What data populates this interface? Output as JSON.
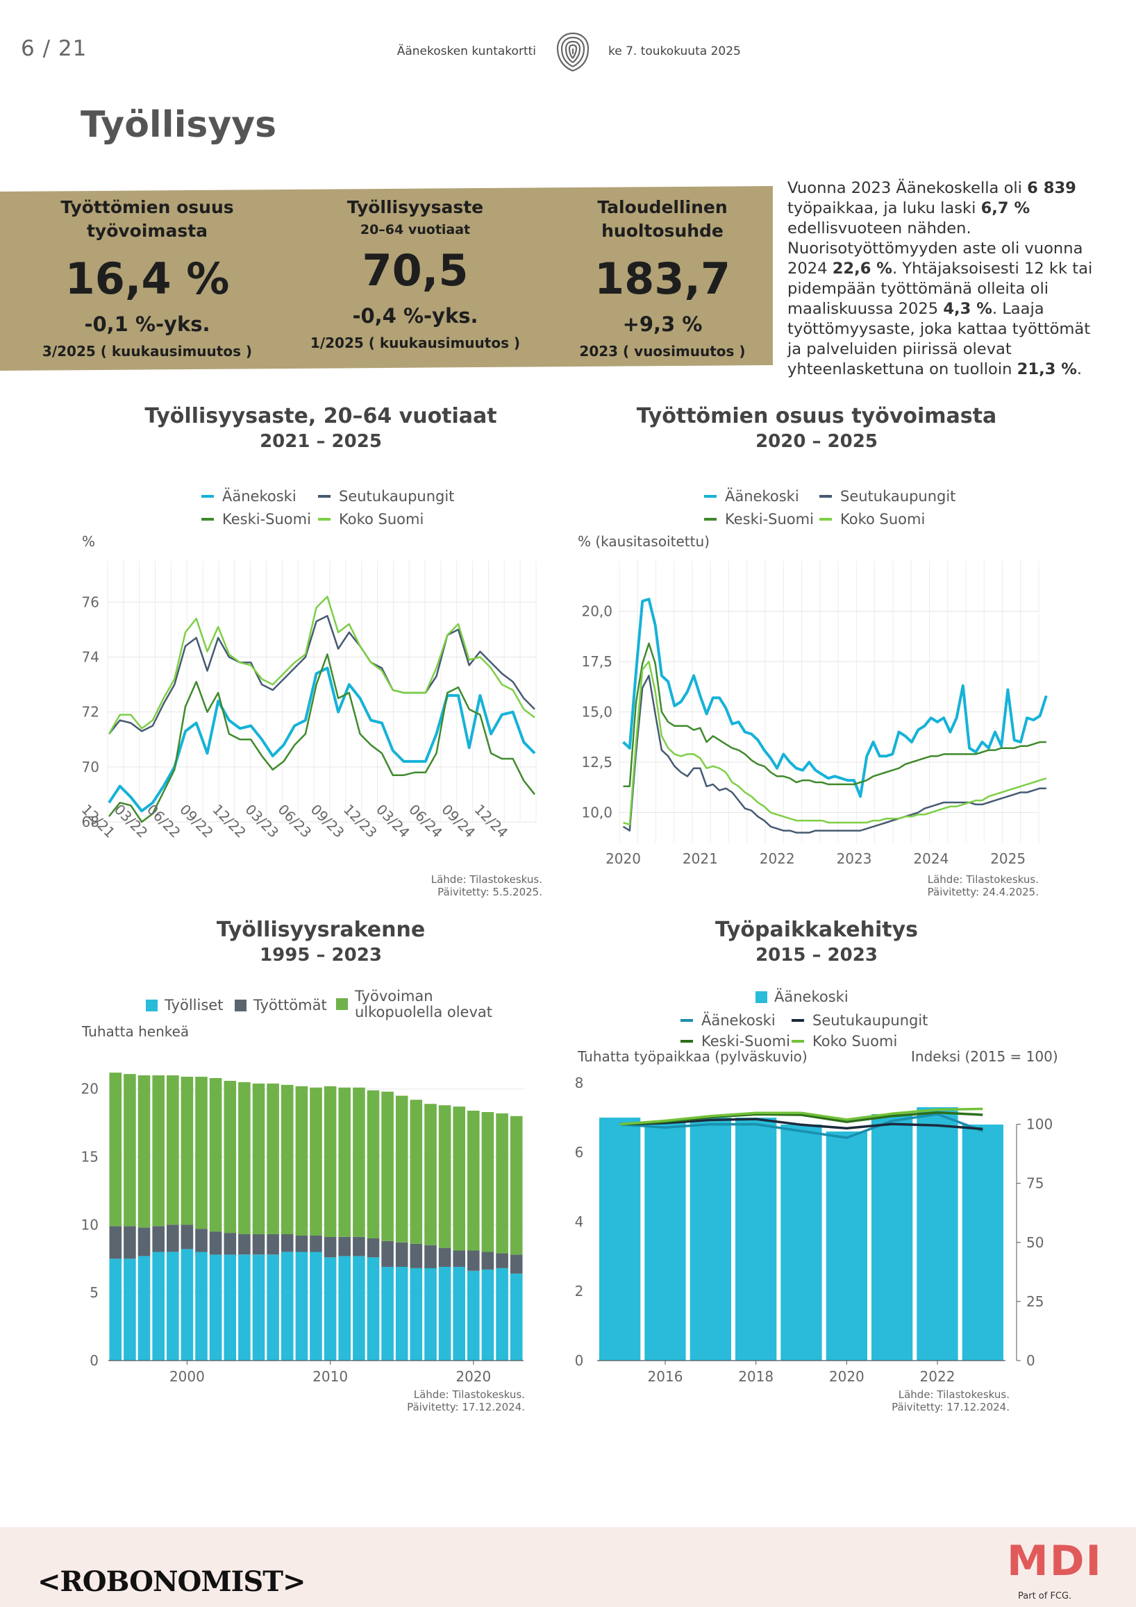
{
  "header": {
    "page": "6 / 21",
    "doc": "Äänekosken kuntakortti",
    "date": "ke 7. toukokuuta 2025"
  },
  "title": "Työllisyys",
  "kpis": [
    {
      "label": "Työttömien osuus työvoimasta",
      "sub": "",
      "value": "16,4 %",
      "change": "-0,1 %-yks.",
      "period": "3/2025 ( kuukausimuutos )"
    },
    {
      "label": "Työllisyysaste",
      "sub": "20–64 vuotiaat",
      "value": "70,5",
      "change": "-0,4 %-yks.",
      "period": "1/2025 ( kuukausimuutos )"
    },
    {
      "label": "Taloudellinen huoltosuhde",
      "sub": "",
      "value": "183,7",
      "change": "+9,3 %",
      "period": "2023 ( vuosimuutos )"
    }
  ],
  "summary": {
    "p1": "Vuonna 2023 Äänekoskella oli ",
    "b1": "6 839",
    "p2": " työpaikkaa, ja luku laski ",
    "b2": "6,7 %",
    "p3": " edellisvuoteen nähden. Nuorisotyöttömyyden aste oli vuonna 2024 ",
    "b3": "22,6 %",
    "p4": ". Yhtäjaksoisesti 12 kk tai pidempään työttömänä olleita oli maaliskuussa 2025 ",
    "b4": "4,3 %",
    "p5": ". Laaja työttömyysaste, joka kattaa työttömät ja palveluiden piirissä olevat yhteenlaskettuna on tuolloin ",
    "b5": "21,3 %",
    "p6": "."
  },
  "colors": {
    "band": "#b2a276",
    "aanekoski": "#16b2d8",
    "seutukaupungit": "#465a72",
    "keski_suomi": "#3f8a2c",
    "koko_suomi": "#7dcf45",
    "bar_blue": "#29bbd9",
    "bar_grey": "#5b6570",
    "bar_green": "#6fb24a",
    "dark_navy": "#1c2a3c"
  },
  "chart_data": [
    {
      "id": "tyollisyysaste",
      "type": "line",
      "title": "Työllisyysaste, 20–64 vuotiaat",
      "subtitle": "2021 – 2025",
      "ylabel": "%",
      "ylim": [
        68,
        77.5
      ],
      "yticks": [
        "68",
        "70",
        "72",
        "74",
        "76"
      ],
      "xticks": [
        "12/21",
        "03/22",
        "06/22",
        "09/22",
        "12/22",
        "03/23",
        "06/23",
        "09/23",
        "12/23",
        "03/24",
        "06/24",
        "09/24",
        "12/24"
      ],
      "source": "Lähde: Tilastokeskus.",
      "updated": "Päivitetty: 5.5.2025.",
      "series": [
        {
          "name": "Äänekoski",
          "color": "#16b2d8",
          "width": 4,
          "values": [
            68.7,
            69.3,
            68.9,
            68.4,
            68.7,
            69.3,
            70.0,
            71.3,
            71.6,
            70.5,
            72.4,
            71.7,
            71.4,
            71.5,
            71.0,
            70.4,
            70.8,
            71.5,
            71.7,
            73.4,
            73.6,
            72.0,
            73.0,
            72.5,
            71.7,
            71.6,
            70.6,
            70.2,
            70.2,
            70.2,
            71.2,
            72.6,
            72.6,
            70.7,
            72.6,
            71.2,
            71.9,
            72.0,
            70.9,
            70.5
          ]
        },
        {
          "name": "Seutukaupungit",
          "color": "#465a72",
          "width": 2.5,
          "values": [
            71.2,
            71.7,
            71.6,
            71.3,
            71.5,
            72.3,
            73.0,
            74.4,
            74.7,
            73.5,
            74.7,
            74.0,
            73.8,
            73.8,
            73.0,
            72.8,
            73.2,
            73.6,
            74.0,
            75.3,
            75.5,
            74.3,
            74.9,
            74.4,
            73.8,
            73.6,
            72.8,
            72.7,
            72.7,
            72.7,
            73.3,
            74.8,
            75.0,
            73.7,
            74.2,
            73.8,
            73.4,
            73.1,
            72.5,
            72.1
          ]
        },
        {
          "name": "Keski-Suomi",
          "color": "#3f8a2c",
          "width": 2.5,
          "values": [
            68.2,
            68.7,
            68.6,
            68.0,
            68.3,
            69.1,
            69.9,
            72.2,
            73.1,
            72.0,
            72.7,
            71.2,
            71.0,
            71.0,
            70.4,
            69.9,
            70.2,
            70.8,
            71.2,
            73.0,
            74.1,
            72.5,
            72.7,
            71.2,
            70.8,
            70.5,
            69.7,
            69.7,
            69.8,
            69.8,
            70.5,
            72.7,
            72.9,
            72.1,
            71.9,
            70.5,
            70.3,
            70.3,
            69.5,
            69.0
          ]
        },
        {
          "name": "Koko Suomi",
          "color": "#7dcf45",
          "width": 2.5,
          "values": [
            71.2,
            71.9,
            71.9,
            71.4,
            71.7,
            72.5,
            73.2,
            74.9,
            75.4,
            74.2,
            75.1,
            74.1,
            73.8,
            73.7,
            73.2,
            73.0,
            73.4,
            73.8,
            74.1,
            75.8,
            76.2,
            74.9,
            75.2,
            74.4,
            73.8,
            73.5,
            72.8,
            72.7,
            72.7,
            72.7,
            73.6,
            74.8,
            75.2,
            73.9,
            74.0,
            73.6,
            73.0,
            72.8,
            72.1,
            71.8
          ]
        }
      ]
    },
    {
      "id": "tyottomien_osuus",
      "type": "line",
      "title": "Työttömien osuus työvoimasta",
      "subtitle": "2020 – 2025",
      "ylabel": "% (kausitasoitettu)",
      "ylim": [
        8.5,
        22.5
      ],
      "yticks": [
        "10,0",
        "12,5",
        "15,0",
        "17,5",
        "20,0"
      ],
      "xticks": [
        "2020",
        "2021",
        "2022",
        "2023",
        "2024",
        "2025"
      ],
      "x_start": 2020.0,
      "x_step": 0.0833,
      "source": "Lähde: Tilastokeskus.",
      "updated": "Päivitetty: 24.4.2025.",
      "series": [
        {
          "name": "Äänekoski",
          "color": "#16b2d8",
          "width": 4,
          "values": [
            13.5,
            13.2,
            17.0,
            20.5,
            20.6,
            19.3,
            16.8,
            16.5,
            15.3,
            15.5,
            16.0,
            16.8,
            15.8,
            14.9,
            15.7,
            15.7,
            15.2,
            14.4,
            14.5,
            14.0,
            13.9,
            13.6,
            13.1,
            12.7,
            12.2,
            12.9,
            12.5,
            12.2,
            12.1,
            12.5,
            12.1,
            11.9,
            11.7,
            11.8,
            11.7,
            11.6,
            11.6,
            10.8,
            12.8,
            13.5,
            12.8,
            12.8,
            12.9,
            14.0,
            13.8,
            13.5,
            14.1,
            14.3,
            14.7,
            14.5,
            14.7,
            14.0,
            14.7,
            16.3,
            13.2,
            13.0,
            13.5,
            13.2,
            14.0,
            13.3,
            16.1,
            13.6,
            13.5,
            14.7,
            14.6,
            14.8,
            15.8
          ]
        },
        {
          "name": "Seutukaupungit",
          "color": "#465a72",
          "width": 2.5,
          "values": [
            9.3,
            9.1,
            13.0,
            16.2,
            16.8,
            14.9,
            13.1,
            12.8,
            12.3,
            12.0,
            11.8,
            12.2,
            12.2,
            11.3,
            11.4,
            11.1,
            11.2,
            11.0,
            10.6,
            10.2,
            10.1,
            9.8,
            9.6,
            9.3,
            9.2,
            9.1,
            9.1,
            9.0,
            9.0,
            9.0,
            9.1,
            9.1,
            9.1,
            9.1,
            9.1,
            9.1,
            9.1,
            9.1,
            9.2,
            9.3,
            9.4,
            9.5,
            9.6,
            9.7,
            9.8,
            9.9,
            10.0,
            10.2,
            10.3,
            10.4,
            10.5,
            10.5,
            10.5,
            10.5,
            10.5,
            10.4,
            10.4,
            10.5,
            10.6,
            10.7,
            10.8,
            10.9,
            11.0,
            11.0,
            11.1,
            11.2,
            11.2
          ]
        },
        {
          "name": "Keski-Suomi",
          "color": "#3f8a2c",
          "width": 2.5,
          "values": [
            11.3,
            11.3,
            15.5,
            17.4,
            18.4,
            17.4,
            15.0,
            14.5,
            14.3,
            14.3,
            14.3,
            14.1,
            14.2,
            13.5,
            13.8,
            13.6,
            13.4,
            13.2,
            13.1,
            12.9,
            12.6,
            12.4,
            12.3,
            12.0,
            11.8,
            11.8,
            11.7,
            11.5,
            11.6,
            11.6,
            11.5,
            11.5,
            11.4,
            11.4,
            11.4,
            11.4,
            11.4,
            11.5,
            11.6,
            11.8,
            11.9,
            12.0,
            12.1,
            12.2,
            12.4,
            12.5,
            12.6,
            12.7,
            12.8,
            12.8,
            12.9,
            12.9,
            12.9,
            12.9,
            12.9,
            12.9,
            13.0,
            13.1,
            13.1,
            13.2,
            13.2,
            13.2,
            13.3,
            13.3,
            13.4,
            13.5,
            13.5
          ]
        },
        {
          "name": "Koko Suomi",
          "color": "#7dcf45",
          "width": 2.5,
          "values": [
            9.5,
            9.4,
            13.5,
            17.1,
            17.5,
            16.0,
            13.8,
            13.2,
            12.9,
            12.8,
            12.9,
            12.9,
            12.7,
            12.2,
            12.3,
            12.2,
            12.0,
            11.5,
            11.3,
            11.0,
            10.8,
            10.5,
            10.3,
            10.0,
            9.9,
            9.8,
            9.7,
            9.6,
            9.6,
            9.6,
            9.6,
            9.6,
            9.5,
            9.5,
            9.5,
            9.5,
            9.5,
            9.5,
            9.5,
            9.6,
            9.6,
            9.7,
            9.7,
            9.7,
            9.8,
            9.8,
            9.9,
            9.9,
            10.0,
            10.1,
            10.2,
            10.3,
            10.3,
            10.4,
            10.5,
            10.6,
            10.6,
            10.8,
            10.9,
            11.0,
            11.1,
            11.2,
            11.3,
            11.4,
            11.5,
            11.6,
            11.7
          ]
        }
      ]
    },
    {
      "id": "tyollisyysrakenne",
      "type": "bar",
      "title": "Työllisyysrakenne",
      "subtitle": "1995 – 2023",
      "ylabel": "Tuhatta henkeä",
      "ylim": [
        0,
        23
      ],
      "yticks": [
        "0",
        "5",
        "10",
        "15",
        "20"
      ],
      "xticks": [
        "2000",
        "2010",
        "2020"
      ],
      "categories": [
        1995,
        1996,
        1997,
        1998,
        1999,
        2000,
        2001,
        2002,
        2003,
        2004,
        2005,
        2006,
        2007,
        2008,
        2009,
        2010,
        2011,
        2012,
        2013,
        2014,
        2015,
        2016,
        2017,
        2018,
        2019,
        2020,
        2021,
        2022,
        2023
      ],
      "source": "Lähde: Tilastokeskus.",
      "updated": "Päivitetty: 17.12.2024.",
      "series": [
        {
          "name": "Työlliset",
          "color": "#29bbd9",
          "values": [
            7.5,
            7.5,
            7.7,
            8.0,
            8.0,
            8.2,
            8.0,
            7.8,
            7.8,
            7.8,
            7.8,
            7.8,
            8.0,
            8.0,
            8.0,
            7.6,
            7.7,
            7.7,
            7.6,
            6.9,
            6.9,
            6.8,
            6.8,
            6.9,
            6.9,
            6.6,
            6.7,
            6.8,
            6.4
          ]
        },
        {
          "name": "Työttömät",
          "color": "#5b6570",
          "values": [
            2.4,
            2.4,
            2.1,
            1.9,
            2.0,
            1.8,
            1.7,
            1.7,
            1.6,
            1.5,
            1.5,
            1.5,
            1.3,
            1.2,
            1.2,
            1.5,
            1.4,
            1.4,
            1.4,
            1.9,
            1.8,
            1.8,
            1.7,
            1.4,
            1.2,
            1.5,
            1.3,
            1.1,
            1.4
          ]
        },
        {
          "name": "Työvoiman ulkopuolella olevat",
          "color": "#6fb24a",
          "values": [
            11.3,
            11.2,
            11.2,
            11.1,
            11.0,
            10.9,
            11.2,
            11.3,
            11.2,
            11.2,
            11.1,
            11.1,
            11.0,
            11.0,
            10.9,
            11.1,
            11.0,
            11.0,
            10.9,
            11.0,
            10.8,
            10.6,
            10.4,
            10.5,
            10.6,
            10.3,
            10.3,
            10.3,
            10.2
          ]
        }
      ]
    },
    {
      "id": "tyopaikkakehitys",
      "type": "bar",
      "title": "Työpaikkakehitys",
      "subtitle": "2015 – 2023",
      "ylabel": "Tuhatta työpaikkaa (pylväskuvio)",
      "ylabel_right": "Indeksi (2015 = 100)",
      "ylim": [
        0,
        8
      ],
      "ylim_right": [
        0,
        117.5
      ],
      "yticks": [
        "0",
        "2",
        "4",
        "6",
        "8"
      ],
      "yticks_right": [
        "0",
        "25",
        "50",
        "75",
        "100"
      ],
      "xticks": [
        "2016",
        "2018",
        "2020",
        "2022"
      ],
      "categories": [
        2015,
        2016,
        2017,
        2018,
        2019,
        2020,
        2021,
        2022,
        2023
      ],
      "bar_legend": "Äänekoski",
      "source": "Lähde: Tilastokeskus.",
      "updated": "Päivitetty: 17.12.2024.",
      "bars": [
        7.0,
        6.9,
        7.0,
        7.0,
        6.8,
        6.6,
        7.1,
        7.3,
        6.8
      ],
      "series": [
        {
          "name": "Äänekoski",
          "color": "#1a8fad",
          "values": [
            100,
            98.6,
            100,
            100,
            97.1,
            94.3,
            101.4,
            104.3,
            97.1
          ]
        },
        {
          "name": "Seutukaupungit",
          "color": "#1c2a3c",
          "values": [
            100,
            100.5,
            101.8,
            102.2,
            99.8,
            98.3,
            100.1,
            99.5,
            98.0
          ]
        },
        {
          "name": "Keski-Suomi",
          "color": "#2d6e1a",
          "values": [
            100,
            101.0,
            103.0,
            104.2,
            104.0,
            101.0,
            103.5,
            105.0,
            104.0
          ]
        },
        {
          "name": "Koko Suomi",
          "color": "#72c23a",
          "values": [
            100,
            101.5,
            103.5,
            104.8,
            104.8,
            102.0,
            104.5,
            106.2,
            106.5
          ]
        }
      ]
    }
  ],
  "footer": {
    "left_logo": "<ROBONOMIST>",
    "right_logo": "MDI",
    "right_sub": "Part of FCG."
  }
}
